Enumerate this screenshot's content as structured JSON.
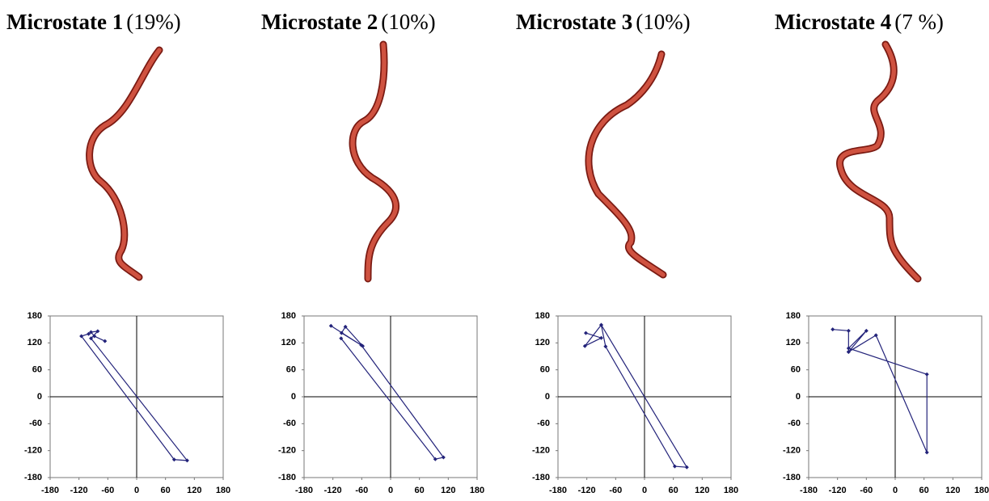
{
  "chart_data": [
    {
      "type": "line",
      "title": "Microstate 1",
      "subtitle": "(19%)",
      "x": [
        -66,
        -88,
        -95,
        -81,
        -95,
        105,
        78,
        -115,
        -100
      ],
      "y": [
        124,
        135,
        144,
        146,
        130,
        -142,
        -140,
        135,
        140
      ],
      "color": "#23237a",
      "xlim": [
        -180,
        180
      ],
      "ylim": [
        -180,
        180
      ],
      "xticks": [
        -180,
        -120,
        -60,
        0,
        60,
        120,
        180
      ],
      "yticks": [
        -180,
        -120,
        -60,
        0,
        60,
        120,
        180
      ]
    },
    {
      "type": "line",
      "title": "Microstate 2",
      "subtitle": "(10%)",
      "x": [
        -124,
        -58,
        -94,
        -102,
        -61,
        110,
        93,
        -103
      ],
      "y": [
        158,
        113,
        156,
        142,
        115,
        -135,
        -139,
        130
      ],
      "color": "#23237a",
      "xlim": [
        -180,
        180
      ],
      "ylim": [
        -180,
        180
      ],
      "xticks": [
        -180,
        -120,
        -60,
        0,
        60,
        120,
        180
      ],
      "yticks": [
        -180,
        -120,
        -60,
        0,
        60,
        120,
        180
      ]
    },
    {
      "type": "line",
      "title": "Microstate 3",
      "subtitle": "(10%)",
      "x": [
        -122,
        -90,
        -124,
        -90,
        88,
        63,
        -81,
        -90
      ],
      "y": [
        142,
        131,
        113,
        160,
        -157,
        -155,
        112,
        160
      ],
      "color": "#23237a",
      "xlim": [
        -180,
        180
      ],
      "ylim": [
        -180,
        180
      ],
      "xticks": [
        -180,
        -120,
        -60,
        0,
        60,
        120,
        180
      ],
      "yticks": [
        -180,
        -120,
        -60,
        0,
        60,
        120,
        180
      ]
    },
    {
      "type": "line",
      "title": "Microstate 4",
      "subtitle": "(7 %)",
      "x": [
        -130,
        -97,
        -97,
        -60,
        -97,
        66,
        66,
        -40,
        -97
      ],
      "y": [
        150,
        147,
        100,
        147,
        108,
        50,
        -124,
        137,
        100
      ],
      "color": "#23237a",
      "xlim": [
        -180,
        180
      ],
      "ylim": [
        -180,
        180
      ],
      "xticks": [
        -180,
        -120,
        -60,
        0,
        60,
        120,
        180
      ],
      "yticks": [
        -180,
        -120,
        -60,
        0,
        60,
        120,
        180
      ]
    }
  ]
}
